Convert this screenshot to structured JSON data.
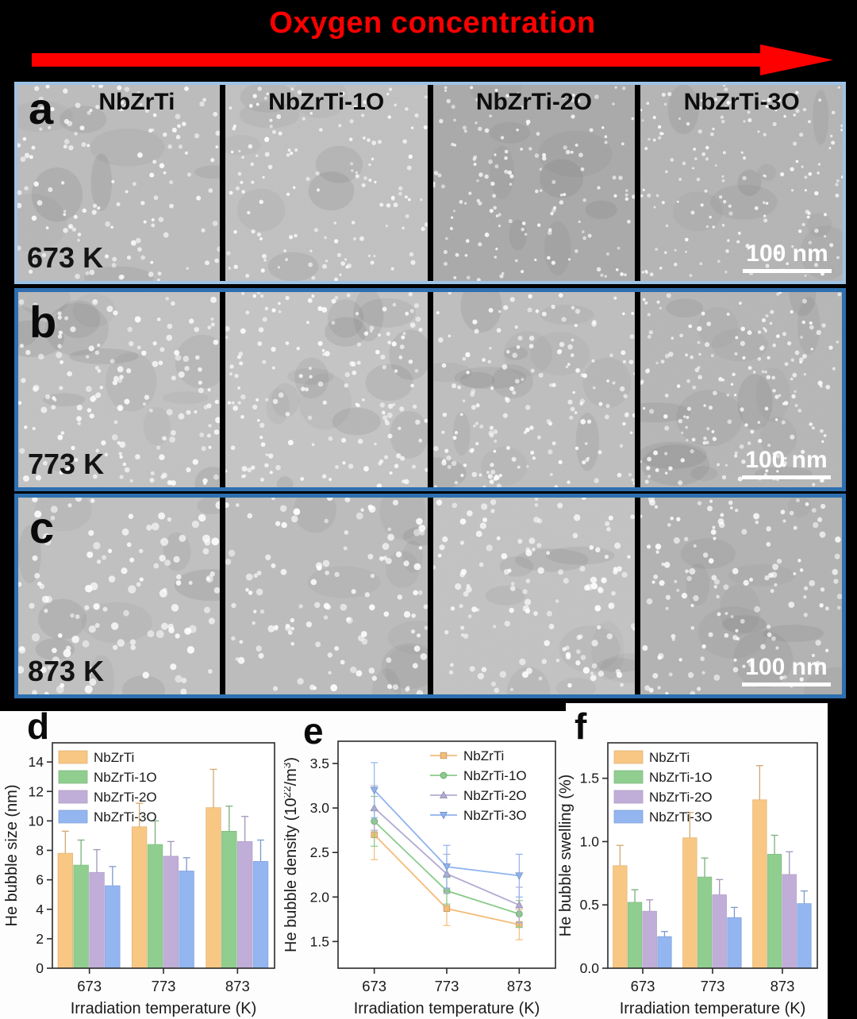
{
  "figure": {
    "title": "Oxygen concentration",
    "arrow_color": "#ff0000",
    "sample_columns": [
      "NbZrTi",
      "NbZrTi-1O",
      "NbZrTi-2O",
      "NbZrTi-3O"
    ],
    "micrograph_rows": [
      {
        "panel": "a",
        "temperature": "673 K",
        "scale_bar": "100 nm",
        "border_color": "#9dc3e6",
        "border_width": 4,
        "show_headers": true
      },
      {
        "panel": "b",
        "temperature": "773 K",
        "scale_bar": "100 nm",
        "border_color": "#2e6fb0",
        "border_width": 5,
        "show_headers": false
      },
      {
        "panel": "c",
        "temperature": "873 K",
        "scale_bar": "100 nm",
        "border_color": "#2e6fb0",
        "border_width": 5,
        "show_headers": false
      }
    ],
    "series_colors": {
      "NbZrTi": "#f8c783",
      "NbZrTi-1O": "#90ce90",
      "NbZrTi-2O": "#c1aed8",
      "NbZrTi-3O": "#93b5f0"
    }
  },
  "chart_data": [
    {
      "panel": "d",
      "type": "bar",
      "categories": [
        "673",
        "773",
        "873"
      ],
      "series": [
        {
          "name": "NbZrTi",
          "color": "#f8c783",
          "values": [
            7.8,
            9.6,
            10.9
          ],
          "errors": [
            1.5,
            1.6,
            2.6
          ]
        },
        {
          "name": "NbZrTi-1O",
          "color": "#90ce90",
          "values": [
            7.0,
            8.4,
            9.3
          ],
          "errors": [
            1.7,
            1.6,
            1.7
          ]
        },
        {
          "name": "NbZrTi-2O",
          "color": "#c1aed8",
          "values": [
            6.5,
            7.6,
            8.6
          ],
          "errors": [
            1.55,
            1.0,
            1.7
          ]
        },
        {
          "name": "NbZrTi-3O",
          "color": "#93b5f0",
          "values": [
            5.6,
            6.6,
            7.25
          ],
          "errors": [
            1.3,
            0.9,
            1.45
          ]
        }
      ],
      "xlabel": "Irradiation temperature (K)",
      "ylabel": "He bubble size (nm)",
      "ylim": [
        0,
        15.3
      ],
      "yticks": [
        0,
        2,
        4,
        6,
        8,
        10,
        12,
        14
      ],
      "ytick_decimals": 0,
      "legend_pos": "top-left",
      "grid": false
    },
    {
      "panel": "e",
      "type": "line",
      "categories": [
        "673",
        "773",
        "873"
      ],
      "series": [
        {
          "name": "NbZrTi",
          "color": "#f3bc79",
          "marker": "square",
          "values": [
            2.7,
            1.87,
            1.69
          ],
          "errors": [
            0.28,
            0.19,
            0.17
          ]
        },
        {
          "name": "NbZrTi-1O",
          "color": "#8acb8a",
          "marker": "circle",
          "values": [
            2.85,
            2.07,
            1.81
          ],
          "errors": [
            0.28,
            0.15,
            0.15
          ]
        },
        {
          "name": "NbZrTi-2O",
          "color": "#b3abd3",
          "marker": "triangle-up",
          "values": [
            3.0,
            2.26,
            1.91
          ],
          "errors": [
            0.25,
            0.22,
            0.2
          ]
        },
        {
          "name": "NbZrTi-3O",
          "color": "#8fb3ef",
          "marker": "triangle-down",
          "values": [
            3.2,
            2.34,
            2.24
          ],
          "errors": [
            0.31,
            0.24,
            0.24
          ]
        }
      ],
      "xlabel": "Irradiation temperature (K)",
      "ylabel": "He bubble density (10^{22}/m^{3})",
      "ylim": [
        1.2,
        3.75
      ],
      "yticks": [
        1.5,
        2.0,
        2.5,
        3.0,
        3.5
      ],
      "ytick_decimals": 1,
      "legend_pos": "top-right",
      "grid": false
    },
    {
      "panel": "f",
      "type": "bar",
      "categories": [
        "673",
        "773",
        "873"
      ],
      "series": [
        {
          "name": "NbZrTi",
          "color": "#f8c783",
          "values": [
            0.81,
            1.03,
            1.33
          ],
          "errors": [
            0.16,
            0.2,
            0.27
          ]
        },
        {
          "name": "NbZrTi-1O",
          "color": "#90ce90",
          "values": [
            0.52,
            0.72,
            0.9
          ],
          "errors": [
            0.1,
            0.15,
            0.15
          ]
        },
        {
          "name": "NbZrTi-2O",
          "color": "#c1aed8",
          "values": [
            0.45,
            0.58,
            0.74
          ],
          "errors": [
            0.09,
            0.12,
            0.18
          ]
        },
        {
          "name": "NbZrTi-3O",
          "color": "#93b5f0",
          "values": [
            0.25,
            0.4,
            0.51
          ],
          "errors": [
            0.04,
            0.08,
            0.1
          ]
        }
      ],
      "xlabel": "Irradiation temperature (K)",
      "ylabel": "He bubble swelling (%)",
      "ylim": [
        0,
        1.78
      ],
      "yticks": [
        0.0,
        0.5,
        1.0,
        1.5
      ],
      "ytick_decimals": 1,
      "legend_pos": "top-left",
      "grid": false
    }
  ]
}
